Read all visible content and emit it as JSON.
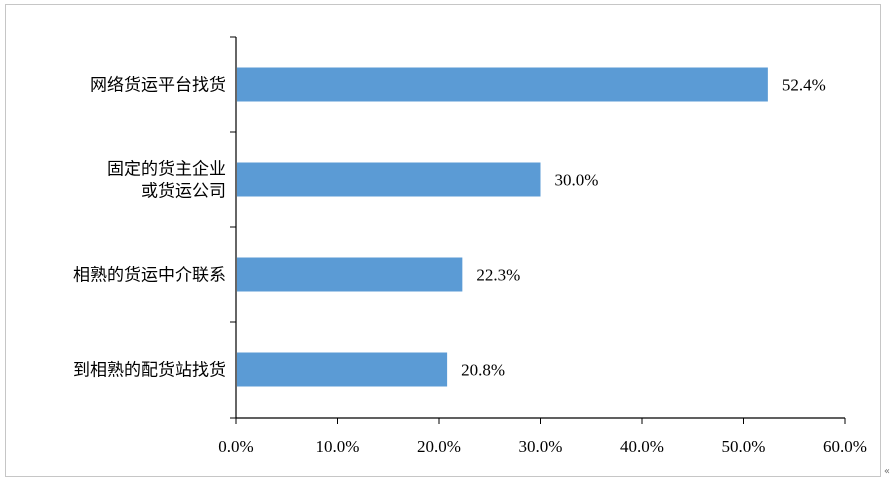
{
  "chart_data": {
    "type": "bar",
    "orientation": "horizontal",
    "title": "",
    "xlabel": "",
    "ylabel": "",
    "categories": [
      [
        "网络货运平台找货"
      ],
      [
        "固定的货主企业",
        "或货运公司"
      ],
      [
        "相熟的货运中介联系"
      ],
      [
        "到相熟的配货站找货"
      ]
    ],
    "values": [
      52.4,
      30.0,
      22.3,
      20.8
    ],
    "value_labels": [
      "52.4%",
      "30.0%",
      "22.3%",
      "20.8%"
    ],
    "xlim": [
      0,
      60
    ],
    "ticks": [
      "0.0%",
      "10.0%",
      "20.0%",
      "30.0%",
      "40.0%",
      "50.0%",
      "60.0%"
    ],
    "bar_color": "#5b9bd5",
    "axis_color": "#000000",
    "grid": false,
    "legend": "none"
  },
  "edge_mark": "«"
}
